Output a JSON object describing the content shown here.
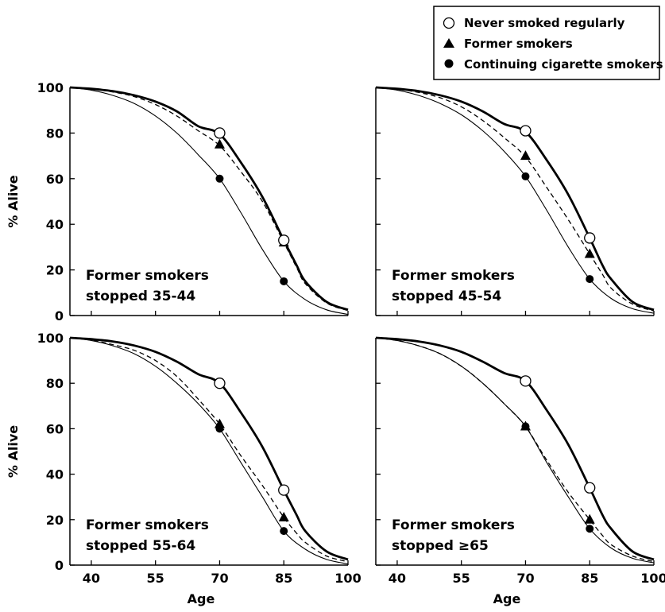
{
  "legend": {
    "items": [
      {
        "label": "Never smoked regularly",
        "marker": "open-circle"
      },
      {
        "label": "Former smokers",
        "marker": "filled-triangle"
      },
      {
        "label": "Continuing cigarette smokers",
        "marker": "filled-circle"
      }
    ]
  },
  "chart_data": [
    {
      "type": "line",
      "panel_label": [
        "Former smokers",
        "stopped 35-44"
      ],
      "xlabel": "",
      "ylabel": "% Alive",
      "xlim": [
        35,
        100
      ],
      "ylim": [
        0,
        100
      ],
      "x_ticks": [
        40,
        55,
        70,
        85,
        100
      ],
      "y_ticks": [
        0,
        20,
        40,
        60,
        80,
        100
      ],
      "series": [
        {
          "name": "Never smoked regularly",
          "style": "thick-solid",
          "x": [
            35,
            40,
            45,
            50,
            55,
            60,
            65,
            70,
            75,
            80,
            85,
            88,
            90,
            95,
            100
          ],
          "y": [
            100,
            99.4,
            98.4,
            96.6,
            93.8,
            89.5,
            83,
            79.5,
            67,
            52,
            33,
            22,
            15,
            6,
            2.5
          ],
          "markers": [
            {
              "x": 70,
              "y": 80
            },
            {
              "x": 85,
              "y": 33
            }
          ]
        },
        {
          "name": "Former smokers",
          "style": "dashed",
          "x": [
            35,
            40,
            45,
            50,
            55,
            60,
            65,
            70,
            75,
            80,
            85,
            88,
            90,
            95,
            100
          ],
          "y": [
            100,
            99.3,
            98,
            96,
            92.5,
            87.5,
            81,
            74.5,
            63,
            50,
            32,
            21,
            14,
            5.5,
            2.2
          ],
          "markers": [
            {
              "x": 70,
              "y": 75
            },
            {
              "x": 85,
              "y": 32
            }
          ]
        },
        {
          "name": "Continuing cigarette smokers",
          "style": "thin-solid",
          "x": [
            35,
            40,
            45,
            50,
            55,
            60,
            65,
            70,
            75,
            80,
            85,
            90,
            95,
            100
          ],
          "y": [
            100,
            98.8,
            96.5,
            93,
            87.5,
            80,
            70.5,
            60,
            45,
            29,
            15,
            7,
            2.5,
            0.5
          ],
          "markers": [
            {
              "x": 70,
              "y": 60
            },
            {
              "x": 85,
              "y": 15
            }
          ]
        }
      ]
    },
    {
      "type": "line",
      "panel_label": [
        "Former smokers",
        "stopped 45-54"
      ],
      "xlabel": "",
      "ylabel": "",
      "xlim": [
        35,
        100
      ],
      "ylim": [
        0,
        100
      ],
      "x_ticks": [
        40,
        55,
        70,
        85,
        100
      ],
      "y_ticks": [
        0,
        20,
        40,
        60,
        80,
        100
      ],
      "series": [
        {
          "name": "Never smoked regularly",
          "style": "thick-solid",
          "x": [
            35,
            40,
            45,
            50,
            55,
            60,
            65,
            70,
            75,
            80,
            85,
            88,
            90,
            95,
            100
          ],
          "y": [
            100,
            99.4,
            98.4,
            96.6,
            93.8,
            89.5,
            84,
            80.5,
            68,
            53,
            34,
            22,
            16,
            6,
            2.5
          ],
          "markers": [
            {
              "x": 70,
              "y": 81
            },
            {
              "x": 85,
              "y": 34
            }
          ]
        },
        {
          "name": "Former smokers",
          "style": "dashed",
          "x": [
            35,
            40,
            45,
            50,
            55,
            60,
            65,
            70,
            75,
            80,
            85,
            88,
            90,
            95,
            100
          ],
          "y": [
            100,
            99.2,
            97.8,
            95.5,
            91.5,
            85.5,
            78,
            69.5,
            56,
            42,
            27,
            18,
            12,
            5,
            2
          ],
          "markers": [
            {
              "x": 70,
              "y": 70
            },
            {
              "x": 85,
              "y": 27
            }
          ]
        },
        {
          "name": "Continuing cigarette smokers",
          "style": "thin-solid",
          "x": [
            35,
            40,
            45,
            50,
            55,
            60,
            65,
            70,
            75,
            80,
            85,
            90,
            95,
            100
          ],
          "y": [
            100,
            98.8,
            96.5,
            93,
            88,
            81,
            72,
            61,
            46,
            30,
            16,
            7.5,
            3,
            1
          ],
          "markers": [
            {
              "x": 70,
              "y": 61
            },
            {
              "x": 85,
              "y": 16
            }
          ]
        }
      ]
    },
    {
      "type": "line",
      "panel_label": [
        "Former smokers",
        "stopped 55-64"
      ],
      "xlabel": "Age",
      "ylabel": "% Alive",
      "xlim": [
        35,
        100
      ],
      "ylim": [
        0,
        100
      ],
      "x_ticks": [
        40,
        55,
        70,
        85,
        100
      ],
      "y_ticks": [
        0,
        20,
        40,
        60,
        80,
        100
      ],
      "series": [
        {
          "name": "Never smoked regularly",
          "style": "thick-solid",
          "x": [
            35,
            40,
            45,
            50,
            55,
            60,
            65,
            70,
            75,
            80,
            85,
            88,
            90,
            95,
            100
          ],
          "y": [
            100,
            99.4,
            98.4,
            96.6,
            93.8,
            89.5,
            84,
            80,
            67,
            52,
            33,
            22,
            15,
            6,
            2.5
          ],
          "markers": [
            {
              "x": 70,
              "y": 80
            },
            {
              "x": 85,
              "y": 33
            }
          ]
        },
        {
          "name": "Former smokers",
          "style": "dashed",
          "x": [
            35,
            40,
            45,
            50,
            55,
            60,
            65,
            70,
            75,
            80,
            85,
            88,
            90,
            95,
            100
          ],
          "y": [
            100,
            99,
            97,
            94.5,
            90,
            83,
            73,
            62,
            48,
            35,
            21,
            14,
            10,
            4,
            1.5
          ],
          "markers": [
            {
              "x": 70,
              "y": 62
            },
            {
              "x": 85,
              "y": 21
            }
          ]
        },
        {
          "name": "Continuing cigarette smokers",
          "style": "thin-solid",
          "x": [
            35,
            40,
            45,
            50,
            55,
            60,
            65,
            70,
            75,
            80,
            85,
            90,
            95,
            100
          ],
          "y": [
            100,
            98.8,
            96.5,
            93,
            87.5,
            80,
            71,
            60,
            45,
            30,
            15,
            7,
            2.5,
            0.5
          ],
          "markers": [
            {
              "x": 70,
              "y": 60
            },
            {
              "x": 85,
              "y": 15
            }
          ]
        }
      ]
    },
    {
      "type": "line",
      "panel_label": [
        "Former smokers",
        "stopped ≥65"
      ],
      "xlabel": "Age",
      "ylabel": "",
      "xlim": [
        35,
        100
      ],
      "ylim": [
        0,
        100
      ],
      "x_ticks": [
        40,
        55,
        70,
        85,
        100
      ],
      "y_ticks": [
        0,
        20,
        40,
        60,
        80,
        100
      ],
      "series": [
        {
          "name": "Never smoked regularly",
          "style": "thick-solid",
          "x": [
            35,
            40,
            45,
            50,
            55,
            60,
            65,
            70,
            75,
            80,
            85,
            88,
            90,
            95,
            100
          ],
          "y": [
            100,
            99.4,
            98.4,
            96.6,
            93.8,
            89.5,
            84.5,
            81,
            68,
            53,
            34,
            22,
            16,
            6,
            2.5
          ],
          "markers": [
            {
              "x": 70,
              "y": 81
            },
            {
              "x": 85,
              "y": 34
            }
          ]
        },
        {
          "name": "Former smokers",
          "style": "dashed",
          "x": [
            35,
            40,
            45,
            50,
            55,
            60,
            65,
            70,
            75,
            80,
            85,
            88,
            90,
            95,
            100
          ],
          "y": [
            100,
            98.8,
            96.5,
            93,
            87.5,
            80,
            71,
            61,
            46,
            32,
            20,
            13,
            9,
            4,
            1.5
          ],
          "markers": [
            {
              "x": 70,
              "y": 61
            },
            {
              "x": 85,
              "y": 20
            }
          ]
        },
        {
          "name": "Continuing cigarette smokers",
          "style": "thin-solid",
          "x": [
            35,
            40,
            45,
            50,
            55,
            60,
            65,
            70,
            75,
            80,
            85,
            90,
            95,
            100
          ],
          "y": [
            100,
            98.8,
            96.5,
            93,
            87.5,
            80,
            71,
            61,
            45,
            30,
            16,
            7.5,
            3,
            1
          ],
          "markers": [
            {
              "x": 70,
              "y": 61
            },
            {
              "x": 85,
              "y": 16
            }
          ]
        }
      ]
    }
  ]
}
